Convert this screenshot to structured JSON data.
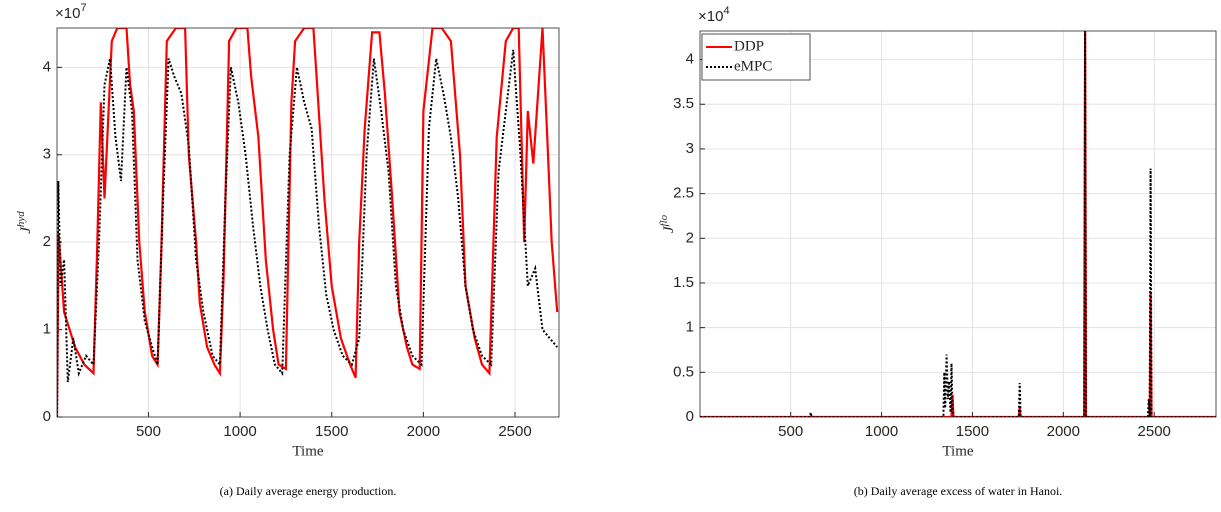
{
  "chart_data": [
    {
      "type": "line",
      "caption": "(a) Daily average energy production.",
      "x_label": "Time",
      "y_label": "J",
      "y_label_sup": "hyd",
      "y_multiplier": "×10",
      "y_multiplier_exp": "7",
      "xlim": [
        1,
        2740
      ],
      "ylim": [
        0,
        4.45
      ],
      "xticks": [
        500,
        1000,
        1500,
        2000,
        2500
      ],
      "yticks": [
        0,
        1,
        2,
        3,
        4
      ],
      "grid": true,
      "series": [
        {
          "name": "DDP",
          "color": "#ff0000",
          "dash": "solid",
          "x": [
            1,
            10,
            40,
            100,
            150,
            200,
            220,
            240,
            260,
            300,
            330,
            380,
            400,
            420,
            450,
            480,
            520,
            550,
            570,
            600,
            650,
            700,
            720,
            760,
            780,
            820,
            860,
            890,
            910,
            940,
            980,
            1040,
            1060,
            1100,
            1140,
            1180,
            1210,
            1250,
            1280,
            1300,
            1350,
            1400,
            1420,
            1460,
            1500,
            1550,
            1600,
            1630,
            1650,
            1680,
            1720,
            1760,
            1790,
            1830,
            1870,
            1910,
            1940,
            1980,
            2000,
            2050,
            2100,
            2150,
            2200,
            2230,
            2280,
            2320,
            2360,
            2400,
            2450,
            2490,
            2520,
            2550,
            2570,
            2600,
            2650,
            2680,
            2700,
            2730
          ],
          "values": [
            0,
            2.1,
            1.2,
            0.8,
            0.6,
            0.5,
            1.9,
            3.6,
            2.5,
            4.3,
            4.45,
            4.45,
            3.8,
            3.5,
            2.0,
            1.2,
            0.7,
            0.6,
            1.9,
            4.3,
            4.45,
            4.45,
            3.0,
            2.0,
            1.3,
            0.8,
            0.6,
            0.5,
            1.6,
            4.3,
            4.45,
            4.45,
            3.9,
            3.2,
            1.8,
            1.0,
            0.6,
            0.55,
            3.6,
            4.3,
            4.45,
            4.45,
            3.8,
            2.5,
            1.5,
            0.9,
            0.6,
            0.45,
            2.0,
            3.3,
            4.4,
            4.4,
            3.7,
            2.5,
            1.2,
            0.8,
            0.6,
            0.55,
            3.5,
            4.45,
            4.45,
            4.3,
            3.0,
            1.5,
            0.9,
            0.6,
            0.5,
            3.2,
            4.3,
            4.45,
            4.45,
            2.0,
            3.5,
            2.9,
            4.45,
            3.0,
            2.0,
            1.2
          ]
        },
        {
          "name": "eMPC",
          "color": "#000000",
          "dash": "dotted",
          "x": [
            1,
            8,
            20,
            40,
            60,
            90,
            120,
            160,
            200,
            230,
            260,
            290,
            320,
            350,
            380,
            410,
            440,
            480,
            520,
            550,
            580,
            610,
            640,
            680,
            720,
            760,
            800,
            850,
            890,
            920,
            950,
            990,
            1030,
            1070,
            1110,
            1150,
            1190,
            1230,
            1270,
            1310,
            1350,
            1390,
            1430,
            1470,
            1510,
            1560,
            1610,
            1650,
            1690,
            1730,
            1770,
            1810,
            1850,
            1890,
            1940,
            1990,
            2030,
            2070,
            2110,
            2150,
            2190,
            2230,
            2270,
            2320,
            2370,
            2410,
            2450,
            2490,
            2530,
            2570,
            2610,
            2650,
            2690,
            2730
          ],
          "values": [
            0,
            2.7,
            1.5,
            1.8,
            0.4,
            0.9,
            0.5,
            0.7,
            0.6,
            2.0,
            3.8,
            4.1,
            3.2,
            2.7,
            4.0,
            3.5,
            1.8,
            1.1,
            0.8,
            0.6,
            2.5,
            4.1,
            3.9,
            3.7,
            3.1,
            1.8,
            1.2,
            0.7,
            0.6,
            2.5,
            4.0,
            3.6,
            3.0,
            2.2,
            1.5,
            1.0,
            0.6,
            0.5,
            3.0,
            4.0,
            3.6,
            3.3,
            2.2,
            1.4,
            1.0,
            0.7,
            0.6,
            0.9,
            3.0,
            4.1,
            3.5,
            2.8,
            1.5,
            1.0,
            0.7,
            0.6,
            3.3,
            4.1,
            3.7,
            3.2,
            2.5,
            1.5,
            1.0,
            0.7,
            0.6,
            2.8,
            3.5,
            4.2,
            3.0,
            1.5,
            1.7,
            1.0,
            0.9,
            0.8
          ]
        }
      ]
    },
    {
      "type": "line",
      "caption": "(b) Daily average excess of water in Hanoi.",
      "x_label": "Time",
      "y_label": "J",
      "y_label_sup": "flo",
      "y_multiplier": "×10",
      "y_multiplier_exp": "4",
      "xlim": [
        1,
        2840
      ],
      "ylim": [
        0,
        4.32
      ],
      "xticks": [
        500,
        1000,
        1500,
        2000,
        2500
      ],
      "yticks": [
        0,
        0.5,
        1,
        1.5,
        2,
        2.5,
        3,
        3.5,
        4
      ],
      "grid": true,
      "legend": "top-left",
      "series": [
        {
          "name": "DDP",
          "color": "#ff0000",
          "dash": "solid",
          "x": [
            1,
            1385,
            1390,
            1395,
            1755,
            1760,
            1765,
            2115,
            2120,
            2125,
            2475,
            2480,
            2485,
            2840
          ],
          "values": [
            0,
            0,
            0.25,
            0,
            0,
            0.1,
            0,
            0,
            4.32,
            0,
            0,
            1.4,
            0,
            0
          ]
        },
        {
          "name": "eMPC",
          "color": "#000000",
          "dash": "dotted",
          "x": [
            1,
            605,
            610,
            615,
            1340,
            1345,
            1350,
            1358,
            1365,
            1372,
            1380,
            1385,
            1390,
            1395,
            1755,
            1760,
            1765,
            2115,
            2120,
            2125,
            2465,
            2470,
            2475,
            2480,
            2485,
            2840
          ],
          "values": [
            0,
            0,
            0.05,
            0,
            0,
            0.5,
            0.1,
            0.7,
            0.2,
            0.4,
            0.05,
            0.6,
            0.1,
            0,
            0,
            0.38,
            0,
            0,
            4.32,
            0,
            0,
            0.2,
            0,
            2.78,
            0,
            0
          ]
        }
      ]
    }
  ]
}
